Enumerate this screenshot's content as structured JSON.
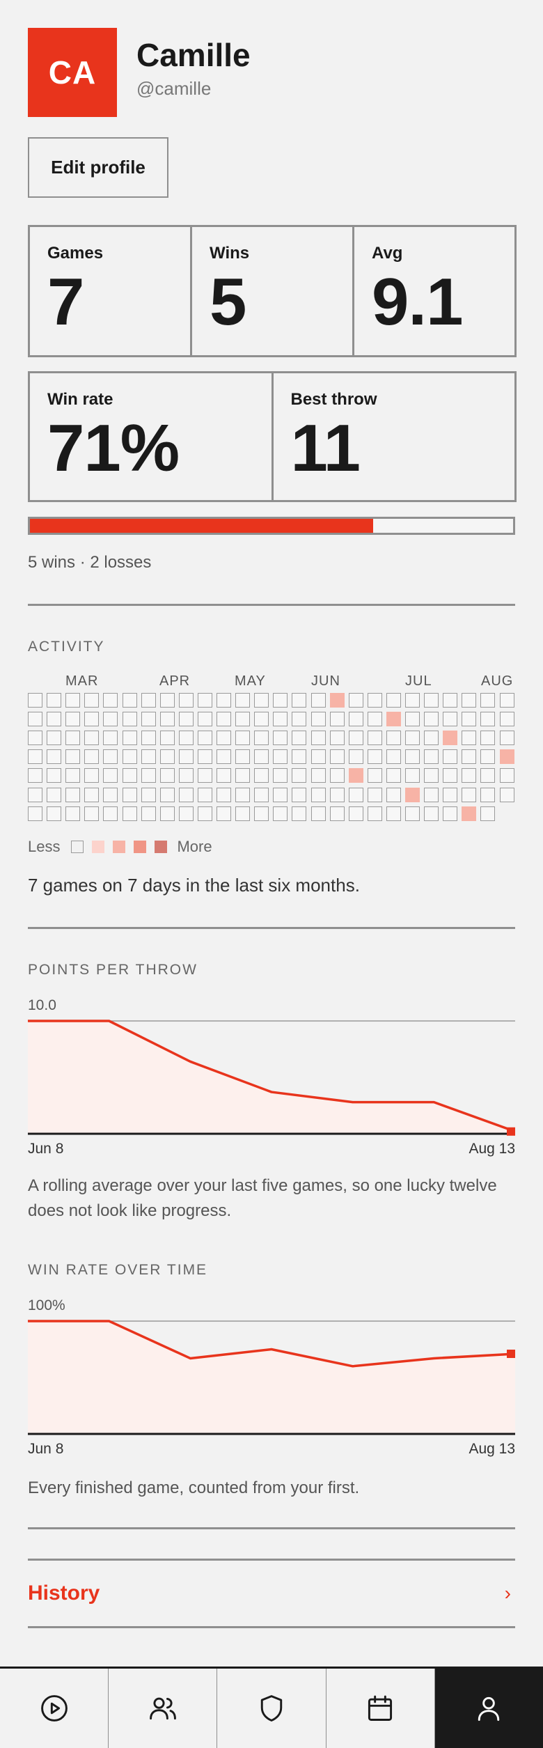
{
  "profile": {
    "initials": "CA",
    "name": "Camille",
    "handle": "@camille",
    "edit_label": "Edit profile"
  },
  "stats": {
    "games": {
      "label": "Games",
      "value": "7"
    },
    "wins": {
      "label": "Wins",
      "value": "5"
    },
    "avg": {
      "label": "Avg",
      "value": "9.1"
    },
    "win_rate": {
      "label": "Win rate",
      "value": "71%"
    },
    "best_throw": {
      "label": "Best throw",
      "value": "11"
    }
  },
  "win_progress": 0.71,
  "record_text": "5 wins · 2 losses",
  "activity": {
    "title": "ACTIVITY",
    "months": [
      "MAR",
      "APR",
      "MAY",
      "JUN",
      "JUL",
      "AUG"
    ],
    "legend_less": "Less",
    "legend_more": "More",
    "summary": "7 games on 7 days in the last six months.",
    "weeks": 26,
    "last_week_days": 6,
    "active_cells": [
      {
        "week": 16,
        "day": 0,
        "level": 2
      },
      {
        "week": 19,
        "day": 1,
        "level": 2
      },
      {
        "week": 22,
        "day": 2,
        "level": 2
      },
      {
        "week": 25,
        "day": 3,
        "level": 2
      },
      {
        "week": 17,
        "day": 4,
        "level": 2
      },
      {
        "week": 20,
        "day": 5,
        "level": 2
      },
      {
        "week": 23,
        "day": 6,
        "level": 2
      }
    ]
  },
  "points_chart": {
    "title": "POINTS PER THROW",
    "ymax_label": "10.0",
    "start_label": "Jun 8",
    "end_label": "Aug 13",
    "caption": "A rolling average over your last five games, so one lucky twelve does not look like progress."
  },
  "winrate_chart": {
    "title": "WIN RATE OVER TIME",
    "ymax_label": "100%",
    "start_label": "Jun 8",
    "end_label": "Aug 13",
    "caption": "Every finished game, counted from your first."
  },
  "chart_data": [
    {
      "type": "area",
      "title": "POINTS PER THROW",
      "x": [
        "Jun 8",
        "",
        "",
        "",
        "",
        "",
        "Aug 13"
      ],
      "values": [
        10.0,
        10.0,
        6.4,
        3.7,
        2.8,
        2.8,
        0.2
      ],
      "ylim": [
        0,
        10
      ],
      "grid": true,
      "color": "#e8341c"
    },
    {
      "type": "area",
      "title": "WIN RATE OVER TIME",
      "x": [
        "Jun 8",
        "",
        "",
        "",
        "",
        "",
        "Aug 13"
      ],
      "values": [
        100,
        100,
        67,
        75,
        60,
        67,
        71
      ],
      "ylim": [
        0,
        100
      ],
      "grid": true,
      "color": "#e8341c"
    }
  ],
  "history": {
    "label": "History",
    "chevron": "›"
  },
  "tabs": [
    {
      "icon": "play-icon",
      "active": false
    },
    {
      "icon": "friends-icon",
      "active": false
    },
    {
      "icon": "shield-icon",
      "active": false
    },
    {
      "icon": "calendar-icon",
      "active": false
    },
    {
      "icon": "profile-icon",
      "active": true
    }
  ],
  "colors": {
    "accent": "#e8341c",
    "background": "#f2f2f2",
    "ink": "#1a1a1a",
    "chart_fill": "#fdf0ed"
  }
}
